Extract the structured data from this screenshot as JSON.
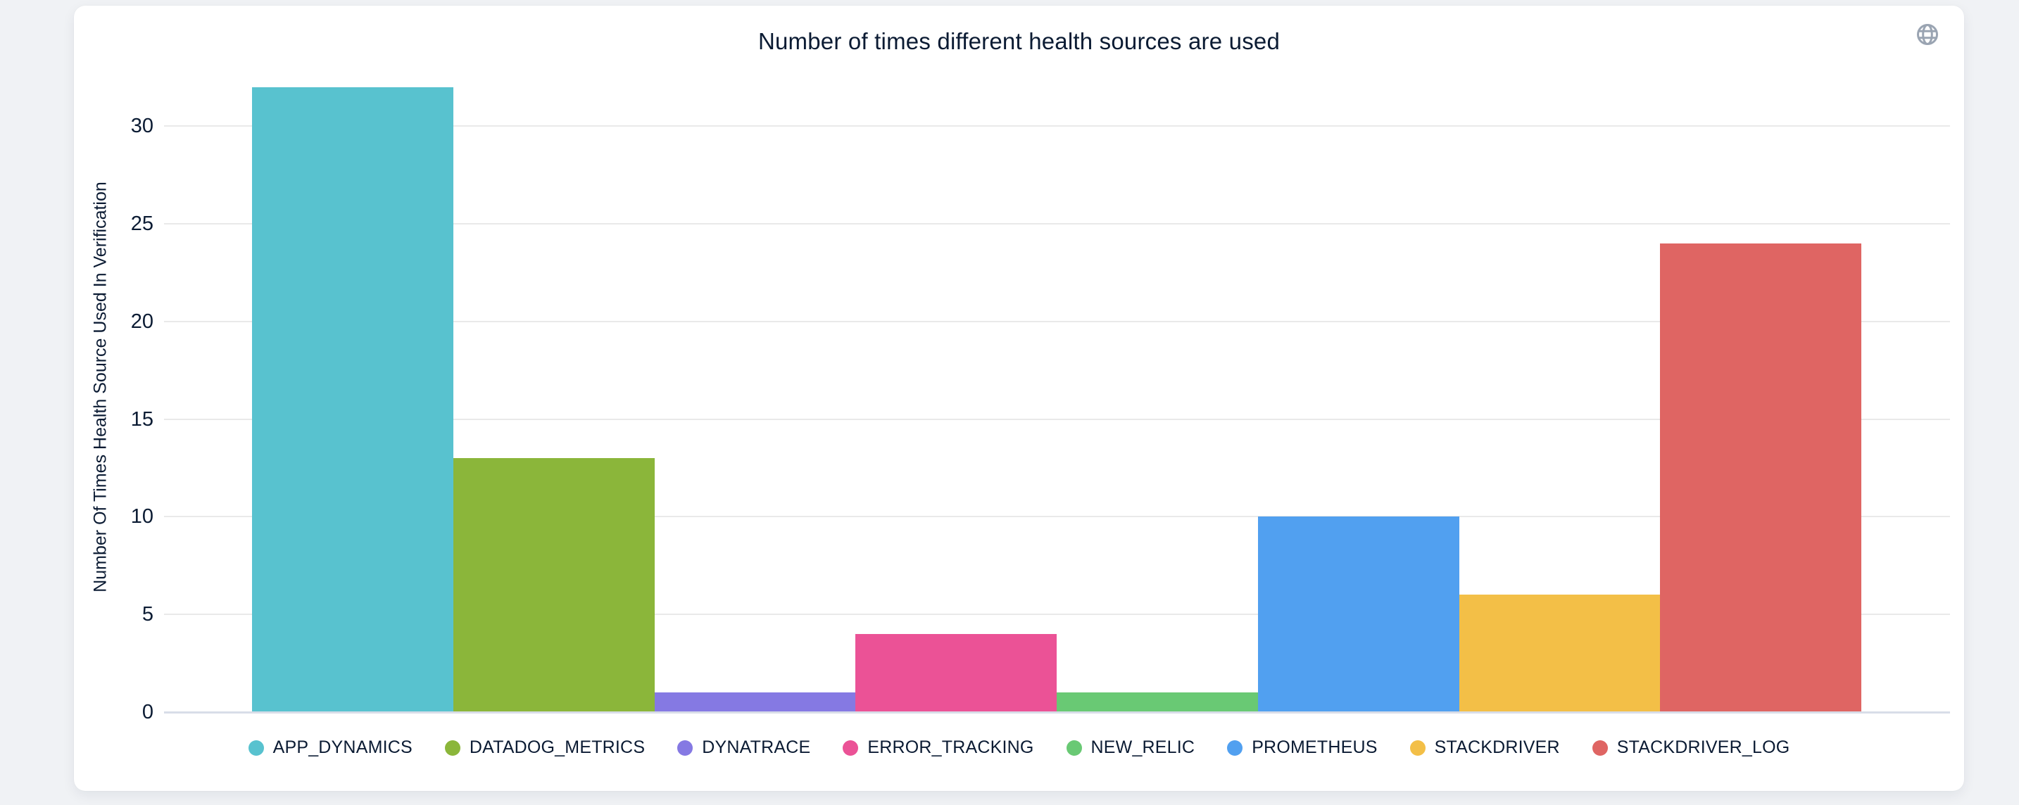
{
  "header": {
    "title": "Number of times different health sources are used"
  },
  "chart_data": {
    "type": "bar",
    "title": "Number of times different health sources are used",
    "categories": [
      "APP_DYNAMICS",
      "DATADOG_METRICS",
      "DYNATRACE",
      "ERROR_TRACKING",
      "NEW_RELIC",
      "PROMETHEUS",
      "STACKDRIVER",
      "STACKDRIVER_LOG"
    ],
    "values": [
      32,
      13,
      1,
      4,
      1,
      10,
      6,
      24
    ],
    "colors": [
      "#58c2cf",
      "#8bb63a",
      "#8579e3",
      "#eb5296",
      "#69c974",
      "#51a0f0",
      "#f3bf47",
      "#df6563"
    ],
    "xlabel": "",
    "ylabel": "Number Of Times Health Source Used In Verification",
    "ylim": [
      0,
      33.3
    ],
    "yticks": [
      0,
      5,
      10,
      15,
      20,
      25,
      30
    ],
    "grid": true,
    "legend_position": "bottom",
    "bar_gap": 0
  },
  "colors": {
    "page_background": "#f0f2f5",
    "card_background": "#ffffff",
    "text": "#0b1b33",
    "gridline": "#e9e9e9",
    "axis_line": "#d8dde8",
    "globe_icon": "#9aa4b2"
  },
  "icons": {
    "globe": "globe-icon"
  }
}
